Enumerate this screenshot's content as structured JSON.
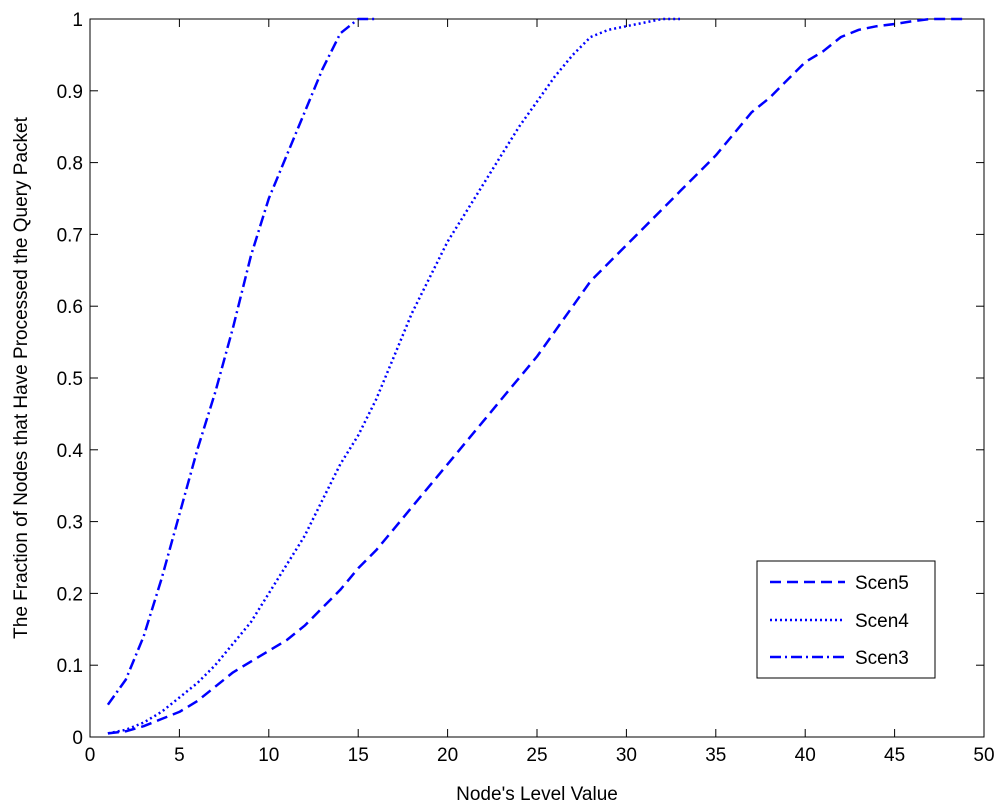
{
  "chart_data": {
    "type": "line",
    "title": "",
    "xlabel": "Node's Level Value",
    "ylabel": "The Fraction of Nodes that Have Processed the Query Packet",
    "xlim": [
      0,
      50
    ],
    "ylim": [
      0,
      1
    ],
    "xticks": [
      "0",
      "5",
      "10",
      "15",
      "20",
      "25",
      "30",
      "35",
      "40",
      "45",
      "50"
    ],
    "yticks": [
      "0",
      "0.1",
      "0.2",
      "0.3",
      "0.4",
      "0.5",
      "0.6",
      "0.7",
      "0.8",
      "0.9",
      "1"
    ],
    "grid": false,
    "legend_position": "bottom-right",
    "line_color": "#0000ff",
    "series": [
      {
        "name": "Scen5",
        "style": "dashed",
        "x": [
          1,
          2,
          3,
          4,
          5,
          6,
          7,
          8,
          9,
          10,
          11,
          12,
          13,
          14,
          15,
          16,
          17,
          18,
          19,
          20,
          21,
          22,
          23,
          24,
          25,
          26,
          27,
          28,
          29,
          30,
          31,
          32,
          33,
          34,
          35,
          36,
          37,
          38,
          39,
          40,
          41,
          42,
          43,
          44,
          45,
          46,
          47,
          48,
          49
        ],
        "y": [
          0.005,
          0.008,
          0.015,
          0.025,
          0.035,
          0.05,
          0.07,
          0.09,
          0.105,
          0.12,
          0.135,
          0.155,
          0.18,
          0.205,
          0.235,
          0.26,
          0.29,
          0.32,
          0.35,
          0.38,
          0.41,
          0.44,
          0.47,
          0.5,
          0.53,
          0.565,
          0.6,
          0.635,
          0.66,
          0.685,
          0.71,
          0.735,
          0.76,
          0.785,
          0.81,
          0.84,
          0.87,
          0.89,
          0.915,
          0.94,
          0.955,
          0.975,
          0.985,
          0.99,
          0.993,
          0.997,
          1.0,
          1.0,
          1.0
        ]
      },
      {
        "name": "Scen4",
        "style": "dotted",
        "x": [
          1,
          2,
          3,
          4,
          5,
          6,
          7,
          8,
          9,
          10,
          11,
          12,
          13,
          14,
          15,
          16,
          17,
          18,
          19,
          20,
          21,
          22,
          23,
          24,
          25,
          26,
          27,
          28,
          29,
          30,
          31,
          32,
          33
        ],
        "y": [
          0.005,
          0.01,
          0.02,
          0.035,
          0.055,
          0.075,
          0.1,
          0.13,
          0.16,
          0.2,
          0.24,
          0.28,
          0.33,
          0.38,
          0.42,
          0.47,
          0.53,
          0.59,
          0.64,
          0.69,
          0.73,
          0.77,
          0.81,
          0.85,
          0.885,
          0.92,
          0.95,
          0.975,
          0.985,
          0.99,
          0.995,
          1.0,
          1.0
        ]
      },
      {
        "name": "Scen3",
        "style": "dashdot",
        "x": [
          1,
          2,
          3,
          4,
          5,
          6,
          7,
          8,
          9,
          10,
          11,
          12,
          13,
          14,
          15,
          16
        ],
        "y": [
          0.045,
          0.08,
          0.14,
          0.22,
          0.31,
          0.4,
          0.48,
          0.57,
          0.67,
          0.75,
          0.81,
          0.87,
          0.93,
          0.98,
          1.0,
          1.0
        ]
      }
    ]
  }
}
